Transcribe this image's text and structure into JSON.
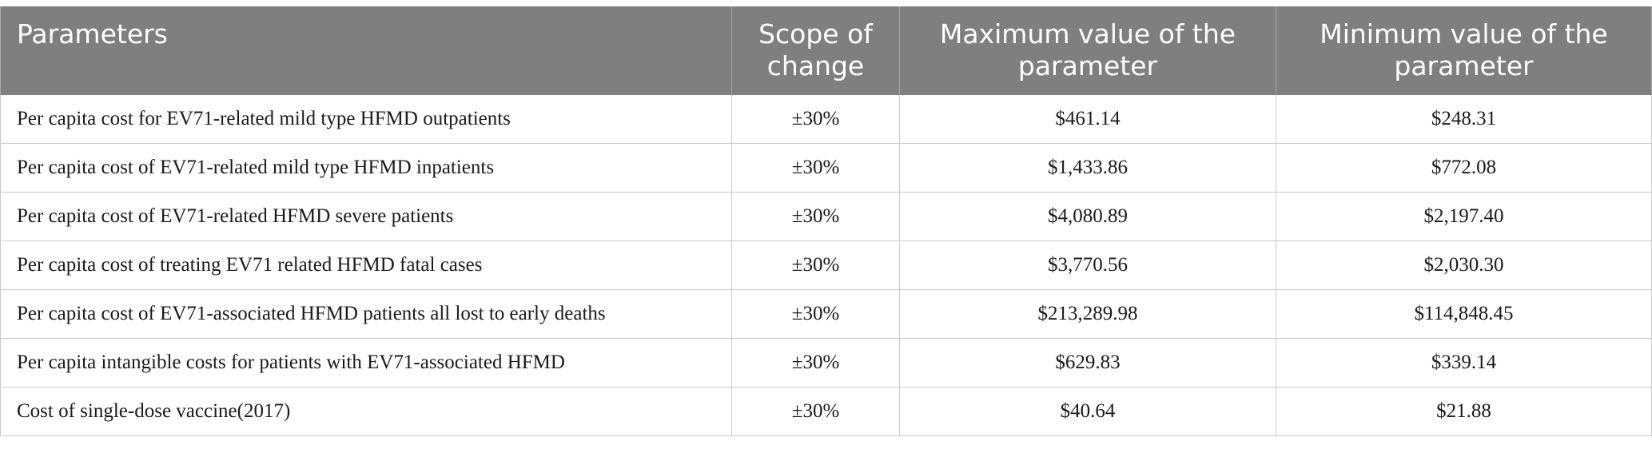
{
  "table": {
    "headers": [
      "Parameters",
      "Scope of change",
      "Maximum value of the parameter",
      "Minimum value of the parameter"
    ],
    "rows": [
      [
        "Per capita cost for EV71-related mild type HFMD outpatients",
        "±30%",
        "$461.14",
        "$248.31"
      ],
      [
        "Per capita cost of EV71-related mild type HFMD inpatients",
        "±30%",
        "$1,433.86",
        "$772.08"
      ],
      [
        "Per capita cost of EV71-related HFMD severe patients",
        "±30%",
        "$4,080.89",
        "$2,197.40"
      ],
      [
        "Per capita cost of treating EV71 related HFMD fatal cases",
        "±30%",
        "$3,770.56",
        "$2,030.30"
      ],
      [
        "Per capita cost of EV71-associated HFMD patients all lost to early deaths",
        "±30%",
        "$213,289.98",
        "$114,848.45"
      ],
      [
        "Per capita intangible costs for patients with EV71-associated HFMD",
        "±30%",
        "$629.83",
        "$339.14"
      ],
      [
        "Cost of single-dose vaccine(2017)",
        "±30%",
        "$40.64",
        "$21.88"
      ]
    ]
  },
  "colors": {
    "header_bg": "#7f807e",
    "header_text": "#ffffff",
    "grid": "#c9c9c9"
  }
}
